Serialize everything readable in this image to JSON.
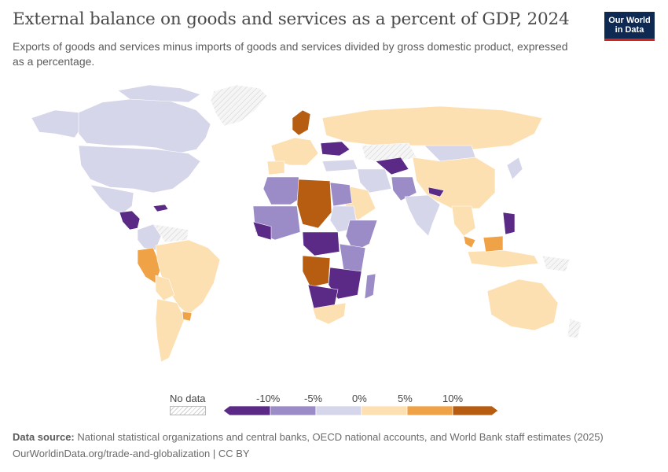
{
  "header": {
    "title": "External balance on goods and services as a percent of GDP, 2024",
    "subtitle": "Exports of goods and services minus imports of goods and services divided by gross domestic product, expressed as a percentage."
  },
  "logo": {
    "line1": "Our World",
    "line2": "in Data"
  },
  "legend": {
    "no_data_label": "No data",
    "tick_labels": [
      "-10%",
      "-5%",
      "0%",
      "5%",
      "10%"
    ],
    "colors": {
      "below_minus10": "#5b2a86",
      "minus10_to_minus5": "#9b8cc8",
      "minus5_to_0": "#d6d6ea",
      "zero_to_5": "#fde0b2",
      "five_to_10": "#f0a346",
      "above_10": "#b65d12",
      "no_data": "#e8e8e8"
    }
  },
  "footer": {
    "source_label": "Data source:",
    "source_text": "National statistical organizations and central banks, OECD national accounts, and World Bank staff estimates (2025)",
    "url_text": "OurWorldinData.org/trade-and-globalization | CC BY"
  }
}
